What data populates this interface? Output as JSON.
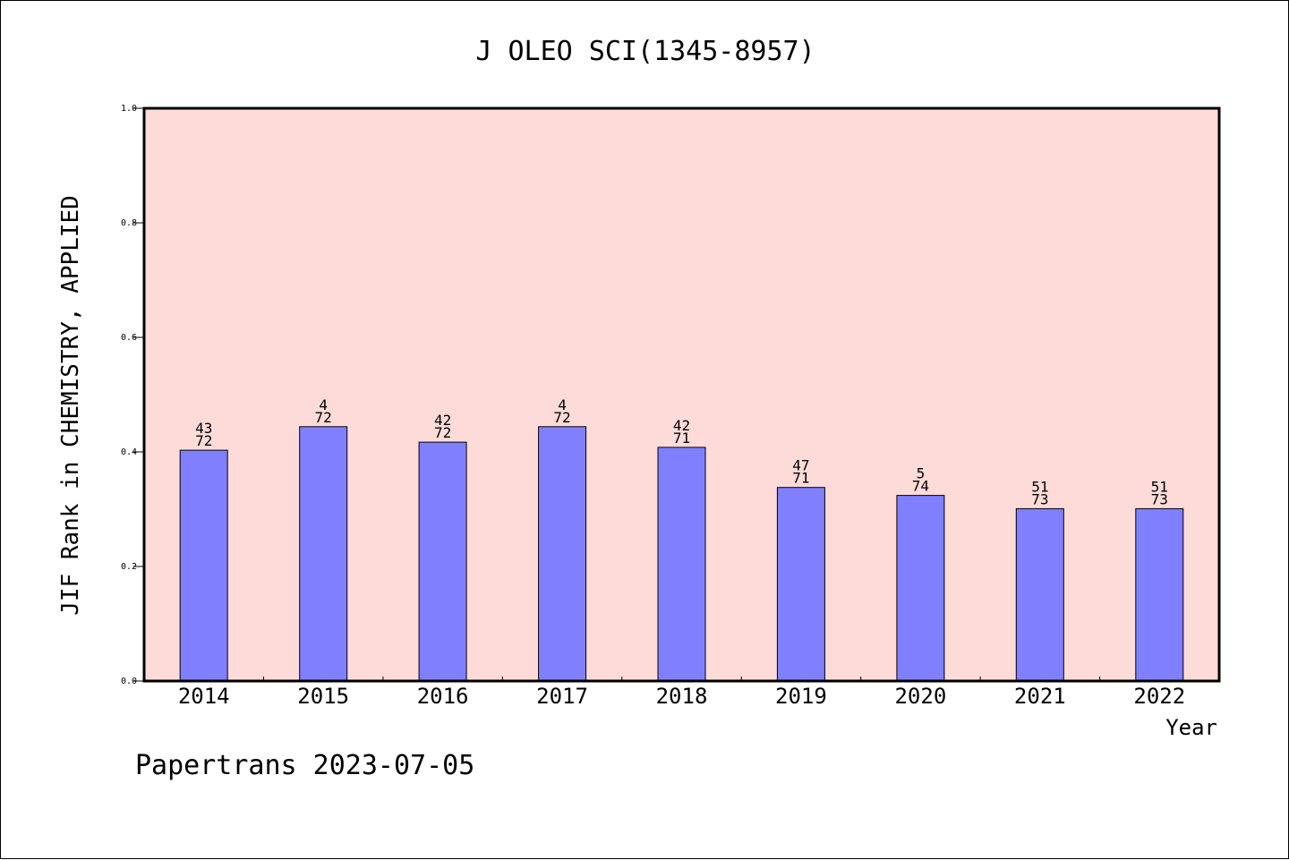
{
  "chart_data": {
    "type": "bar",
    "title": "J OLEO SCI(1345-8957)",
    "xlabel": "Year",
    "ylabel": "JIF Rank in CHEMISTRY, APPLIED",
    "ylim": [
      0,
      1.0
    ],
    "yticks": [
      "0.0",
      "0.2",
      "0.4",
      "0.6",
      "0.8",
      "1.0"
    ],
    "categories": [
      "2014",
      "2015",
      "2016",
      "2017",
      "2018",
      "2019",
      "2020",
      "2021",
      "2022"
    ],
    "values": [
      0.403,
      0.444,
      0.417,
      0.444,
      0.408,
      0.338,
      0.324,
      0.301,
      0.301
    ],
    "labels": [
      {
        "top": "43",
        "bottom": "72"
      },
      {
        "top": "4",
        "bottom": "72"
      },
      {
        "top": "42",
        "bottom": "72"
      },
      {
        "top": "4",
        "bottom": "72"
      },
      {
        "top": "42",
        "bottom": "71"
      },
      {
        "top": "47",
        "bottom": "71"
      },
      {
        "top": "5",
        "bottom": "74"
      },
      {
        "top": "51",
        "bottom": "73"
      },
      {
        "top": "51",
        "bottom": "73"
      }
    ],
    "colors": {
      "bar": "#8080ff",
      "plot_background": "#fddbd8",
      "axis": "#000000"
    },
    "grid": false
  },
  "footer": "Papertrans 2023-07-05"
}
